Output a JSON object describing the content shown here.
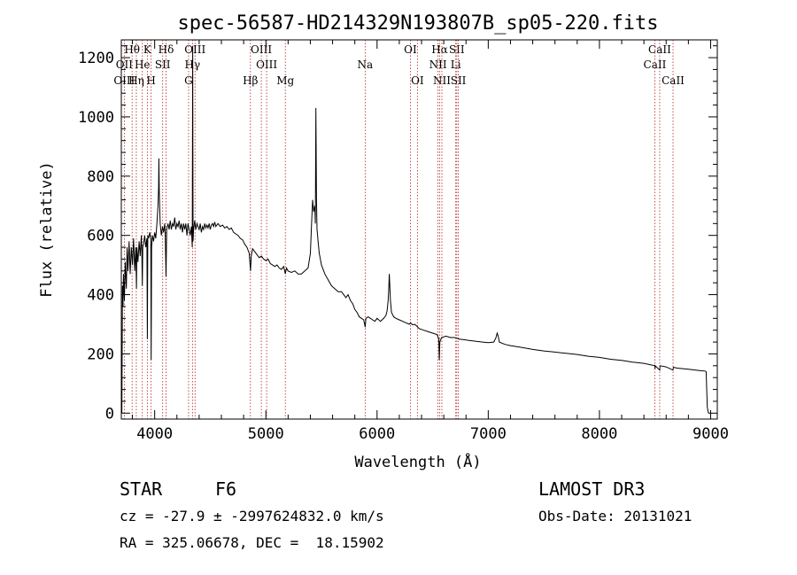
{
  "chart_data": {
    "type": "line",
    "title": "spec-56587-HD214329N193807B_sp05-220.fits",
    "xlabel": "Wavelength (Å)",
    "ylabel": "Flux (relative)",
    "xlim": [
      3700,
      9060
    ],
    "ylim": [
      -20,
      1260
    ],
    "xticks": [
      4000,
      5000,
      6000,
      7000,
      8000,
      9000
    ],
    "yticks": [
      0,
      200,
      400,
      600,
      800,
      1000,
      1200
    ],
    "grid": false,
    "series": [
      {
        "name": "flux",
        "points": [
          [
            3700,
            60
          ],
          [
            3705,
            0
          ],
          [
            3710,
            430
          ],
          [
            3715,
            360
          ],
          [
            3720,
            470
          ],
          [
            3728,
            380
          ],
          [
            3735,
            510
          ],
          [
            3745,
            420
          ],
          [
            3752,
            560
          ],
          [
            3760,
            480
          ],
          [
            3770,
            580
          ],
          [
            3780,
            470
          ],
          [
            3790,
            560
          ],
          [
            3800,
            500
          ],
          [
            3810,
            590
          ],
          [
            3820,
            480
          ],
          [
            3830,
            560
          ],
          [
            3836,
            420
          ],
          [
            3840,
            560
          ],
          [
            3850,
            510
          ],
          [
            3860,
            580
          ],
          [
            3870,
            530
          ],
          [
            3880,
            600
          ],
          [
            3885,
            540
          ],
          [
            3889,
            430
          ],
          [
            3893,
            560
          ],
          [
            3900,
            570
          ],
          [
            3910,
            600
          ],
          [
            3920,
            560
          ],
          [
            3930,
            590
          ],
          [
            3934,
            250
          ],
          [
            3938,
            600
          ],
          [
            3945,
            590
          ],
          [
            3955,
            610
          ],
          [
            3965,
            590
          ],
          [
            3968,
            180
          ],
          [
            3972,
            560
          ],
          [
            3980,
            600
          ],
          [
            3990,
            580
          ],
          [
            4000,
            610
          ],
          [
            4010,
            590
          ],
          [
            4020,
            640
          ],
          [
            4030,
            700
          ],
          [
            4035,
            760
          ],
          [
            4038,
            860
          ],
          [
            4042,
            740
          ],
          [
            4050,
            640
          ],
          [
            4060,
            600
          ],
          [
            4070,
            630
          ],
          [
            4080,
            610
          ],
          [
            4090,
            640
          ],
          [
            4095,
            600
          ],
          [
            4102,
            460
          ],
          [
            4108,
            620
          ],
          [
            4120,
            640
          ],
          [
            4130,
            620
          ],
          [
            4140,
            650
          ],
          [
            4150,
            620
          ],
          [
            4160,
            640
          ],
          [
            4170,
            630
          ],
          [
            4180,
            660
          ],
          [
            4190,
            620
          ],
          [
            4200,
            640
          ],
          [
            4210,
            630
          ],
          [
            4220,
            650
          ],
          [
            4230,
            620
          ],
          [
            4240,
            640
          ],
          [
            4250,
            610
          ],
          [
            4260,
            640
          ],
          [
            4270,
            620
          ],
          [
            4280,
            640
          ],
          [
            4290,
            600
          ],
          [
            4300,
            640
          ],
          [
            4310,
            620
          ],
          [
            4320,
            600
          ],
          [
            4330,
            630
          ],
          [
            4338,
            560
          ],
          [
            4342,
            1240
          ],
          [
            4345,
            580
          ],
          [
            4350,
            620
          ],
          [
            4360,
            650
          ],
          [
            4370,
            620
          ],
          [
            4380,
            640
          ],
          [
            4390,
            630
          ],
          [
            4400,
            620
          ],
          [
            4410,
            640
          ],
          [
            4420,
            610
          ],
          [
            4430,
            630
          ],
          [
            4440,
            620
          ],
          [
            4450,
            640
          ],
          [
            4460,
            625
          ],
          [
            4470,
            635
          ],
          [
            4480,
            625
          ],
          [
            4490,
            640
          ],
          [
            4500,
            620
          ],
          [
            4510,
            635
          ],
          [
            4520,
            640
          ],
          [
            4530,
            630
          ],
          [
            4540,
            645
          ],
          [
            4550,
            630
          ],
          [
            4570,
            640
          ],
          [
            4590,
            630
          ],
          [
            4610,
            635
          ],
          [
            4630,
            625
          ],
          [
            4650,
            630
          ],
          [
            4670,
            620
          ],
          [
            4690,
            625
          ],
          [
            4710,
            610
          ],
          [
            4730,
            605
          ],
          [
            4750,
            600
          ],
          [
            4770,
            590
          ],
          [
            4790,
            585
          ],
          [
            4810,
            570
          ],
          [
            4830,
            560
          ],
          [
            4850,
            540
          ],
          [
            4858,
            500
          ],
          [
            4862,
            480
          ],
          [
            4868,
            530
          ],
          [
            4880,
            555
          ],
          [
            4900,
            545
          ],
          [
            4920,
            535
          ],
          [
            4940,
            525
          ],
          [
            4960,
            530
          ],
          [
            4980,
            520
          ],
          [
            5000,
            515
          ],
          [
            5020,
            520
          ],
          [
            5040,
            505
          ],
          [
            5060,
            500
          ],
          [
            5080,
            495
          ],
          [
            5100,
            500
          ],
          [
            5120,
            490
          ],
          [
            5140,
            485
          ],
          [
            5160,
            495
          ],
          [
            5175,
            470
          ],
          [
            5185,
            490
          ],
          [
            5200,
            480
          ],
          [
            5230,
            475
          ],
          [
            5260,
            480
          ],
          [
            5290,
            470
          ],
          [
            5320,
            470
          ],
          [
            5350,
            480
          ],
          [
            5380,
            490
          ],
          [
            5400,
            540
          ],
          [
            5410,
            630
          ],
          [
            5420,
            720
          ],
          [
            5430,
            680
          ],
          [
            5440,
            700
          ],
          [
            5445,
            640
          ],
          [
            5450,
            1030
          ],
          [
            5455,
            720
          ],
          [
            5460,
            620
          ],
          [
            5470,
            580
          ],
          [
            5480,
            540
          ],
          [
            5500,
            500
          ],
          [
            5530,
            470
          ],
          [
            5560,
            450
          ],
          [
            5590,
            430
          ],
          [
            5620,
            420
          ],
          [
            5650,
            410
          ],
          [
            5680,
            410
          ],
          [
            5700,
            400
          ],
          [
            5720,
            390
          ],
          [
            5740,
            400
          ],
          [
            5760,
            380
          ],
          [
            5780,
            370
          ],
          [
            5800,
            350
          ],
          [
            5820,
            340
          ],
          [
            5840,
            325
          ],
          [
            5860,
            320
          ],
          [
            5880,
            315
          ],
          [
            5893,
            290
          ],
          [
            5900,
            320
          ],
          [
            5920,
            325
          ],
          [
            5940,
            320
          ],
          [
            5960,
            315
          ],
          [
            5980,
            310
          ],
          [
            6000,
            320
          ],
          [
            6030,
            310
          ],
          [
            6060,
            320
          ],
          [
            6080,
            330
          ],
          [
            6090,
            345
          ],
          [
            6100,
            380
          ],
          [
            6105,
            420
          ],
          [
            6110,
            470
          ],
          [
            6115,
            430
          ],
          [
            6120,
            380
          ],
          [
            6130,
            340
          ],
          [
            6150,
            325
          ],
          [
            6170,
            320
          ],
          [
            6200,
            315
          ],
          [
            6230,
            310
          ],
          [
            6260,
            305
          ],
          [
            6290,
            300
          ],
          [
            6300,
            305
          ],
          [
            6320,
            298
          ],
          [
            6340,
            300
          ],
          [
            6380,
            285
          ],
          [
            6420,
            280
          ],
          [
            6460,
            275
          ],
          [
            6500,
            270
          ],
          [
            6540,
            265
          ],
          [
            6555,
            250
          ],
          [
            6560,
            180
          ],
          [
            6565,
            240
          ],
          [
            6580,
            255
          ],
          [
            6620,
            260
          ],
          [
            6660,
            255
          ],
          [
            6700,
            255
          ],
          [
            6740,
            250
          ],
          [
            6780,
            248
          ],
          [
            6820,
            246
          ],
          [
            6860,
            244
          ],
          [
            6900,
            242
          ],
          [
            6950,
            240
          ],
          [
            7000,
            238
          ],
          [
            7050,
            240
          ],
          [
            7070,
            255
          ],
          [
            7080,
            270
          ],
          [
            7090,
            260
          ],
          [
            7100,
            240
          ],
          [
            7150,
            232
          ],
          [
            7200,
            228
          ],
          [
            7300,
            222
          ],
          [
            7400,
            215
          ],
          [
            7500,
            210
          ],
          [
            7600,
            206
          ],
          [
            7700,
            202
          ],
          [
            7800,
            198
          ],
          [
            7900,
            192
          ],
          [
            8000,
            188
          ],
          [
            8100,
            182
          ],
          [
            8200,
            178
          ],
          [
            8300,
            172
          ],
          [
            8400,
            168
          ],
          [
            8498,
            160
          ],
          [
            8500,
            150
          ],
          [
            8502,
            160
          ],
          [
            8542,
            145
          ],
          [
            8545,
            160
          ],
          [
            8600,
            156
          ],
          [
            8662,
            145
          ],
          [
            8665,
            155
          ],
          [
            8700,
            152
          ],
          [
            8800,
            148
          ],
          [
            8900,
            144
          ],
          [
            8950,
            142
          ],
          [
            8960,
            140
          ],
          [
            8970,
            20
          ],
          [
            8980,
            0
          ]
        ]
      }
    ],
    "spectral_lines": [
      {
        "label": "Hθ",
        "x": 3797,
        "row": 0
      },
      {
        "label": "OII",
        "x": 3727,
        "row": 1
      },
      {
        "label": "OIII",
        "x": 3727,
        "row": 2
      },
      {
        "label": "He",
        "x": 3889,
        "row": 1
      },
      {
        "label": "Hη",
        "x": 3835,
        "row": 2
      },
      {
        "label": "K",
        "x": 3934,
        "row": 0
      },
      {
        "label": "H",
        "x": 3968,
        "row": 2
      },
      {
        "label": "SII",
        "x": 4072,
        "row": 1
      },
      {
        "label": "Hδ",
        "x": 4102,
        "row": 0
      },
      {
        "label": "OIII",
        "x": 4363,
        "row": 0
      },
      {
        "label": "Hγ",
        "x": 4340,
        "row": 1
      },
      {
        "label": "G",
        "x": 4305,
        "row": 2
      },
      {
        "label": "Hβ",
        "x": 4861,
        "row": 2
      },
      {
        "label": "OIII",
        "x": 4959,
        "row": 0
      },
      {
        "label": "OIII",
        "x": 5007,
        "row": 1
      },
      {
        "label": "Mg",
        "x": 5175,
        "row": 2
      },
      {
        "label": "Na",
        "x": 5893,
        "row": 1
      },
      {
        "label": "OI",
        "x": 6300,
        "row": 0
      },
      {
        "label": "OI",
        "x": 6363,
        "row": 2
      },
      {
        "label": "Hα",
        "x": 6563,
        "row": 0
      },
      {
        "label": "NII",
        "x": 6548,
        "row": 1
      },
      {
        "label": "NII",
        "x": 6583,
        "row": 2
      },
      {
        "label": "SII",
        "x": 6717,
        "row": 0
      },
      {
        "label": "Li",
        "x": 6708,
        "row": 1
      },
      {
        "label": "SII",
        "x": 6731,
        "row": 2
      },
      {
        "label": "CaII",
        "x": 8542,
        "row": 0
      },
      {
        "label": "CaII",
        "x": 8498,
        "row": 1
      },
      {
        "label": "CaII",
        "x": 8662,
        "row": 2
      }
    ]
  },
  "info": {
    "object_type": "STAR",
    "subclass": "F6",
    "survey": "LAMOST DR3",
    "cz_line": "cz = -27.9 ± -2997624832.0 km/s",
    "obs_date_line": "Obs-Date: 20131021",
    "radec_line": "RA = 325.06678, DEC =  18.15902"
  }
}
